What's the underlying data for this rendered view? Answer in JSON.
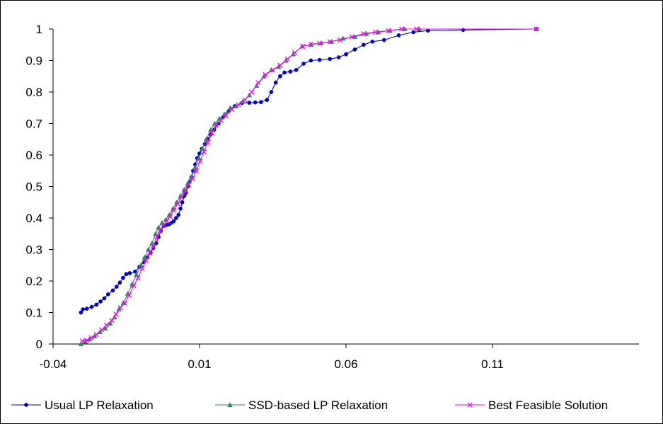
{
  "chart_data": {
    "type": "line",
    "title": "",
    "xlabel": "",
    "ylabel": "",
    "xlim": [
      -0.04,
      0.16
    ],
    "ylim": [
      0,
      1
    ],
    "x_ticks": [
      -0.04,
      0.01,
      0.06,
      0.11
    ],
    "x_tick_labels": [
      "-0.04",
      "0.01",
      "0.06",
      "0.11"
    ],
    "y_ticks": [
      0,
      0.1,
      0.2,
      0.3,
      0.4,
      0.5,
      0.6,
      0.7,
      0.8,
      0.9,
      1
    ],
    "y_tick_labels": [
      "0",
      "0.1",
      "0.2",
      "0.3",
      "0.4",
      "0.5",
      "0.6",
      "0.7",
      "0.8",
      "0.9",
      "1"
    ],
    "grid": false,
    "legend_position": "bottom",
    "series": [
      {
        "name": "Usual LP Relaxation",
        "color": "#0000cc",
        "marker": "circle",
        "x": [
          -0.0305,
          -0.0298,
          -0.0285,
          -0.0268,
          -0.0252,
          -0.0238,
          -0.0225,
          -0.0212,
          -0.0196,
          -0.0183,
          -0.0172,
          -0.0161,
          -0.015,
          -0.0138,
          -0.012,
          -0.0105,
          -0.009,
          -0.0078,
          -0.0067,
          -0.0058,
          -0.0048,
          -0.004,
          -0.0032,
          -0.0022,
          -0.0012,
          -0.0004,
          0.0004,
          0.0012,
          0.002,
          0.0028,
          0.0035,
          0.0041,
          0.0048,
          0.0054,
          0.006,
          0.0066,
          0.0072,
          0.0078,
          0.0085,
          0.0092,
          0.01,
          0.0108,
          0.0118,
          0.0128,
          0.0138,
          0.015,
          0.0165,
          0.018,
          0.02,
          0.022,
          0.0245,
          0.027,
          0.029,
          0.031,
          0.033,
          0.0345,
          0.036,
          0.0375,
          0.039,
          0.041,
          0.043,
          0.0455,
          0.048,
          0.051,
          0.0545,
          0.0575,
          0.06,
          0.063,
          0.066,
          0.069,
          0.073,
          0.078,
          0.083,
          0.088,
          0.1,
          0.125
        ],
        "y": [
          0.1,
          0.11,
          0.112,
          0.118,
          0.125,
          0.135,
          0.145,
          0.158,
          0.17,
          0.182,
          0.195,
          0.21,
          0.222,
          0.225,
          0.23,
          0.245,
          0.26,
          0.275,
          0.29,
          0.305,
          0.32,
          0.34,
          0.36,
          0.375,
          0.378,
          0.38,
          0.385,
          0.39,
          0.4,
          0.41,
          0.43,
          0.45,
          0.47,
          0.48,
          0.5,
          0.515,
          0.53,
          0.55,
          0.57,
          0.59,
          0.605,
          0.62,
          0.635,
          0.65,
          0.665,
          0.68,
          0.7,
          0.72,
          0.74,
          0.755,
          0.765,
          0.766,
          0.767,
          0.768,
          0.775,
          0.8,
          0.83,
          0.85,
          0.862,
          0.865,
          0.87,
          0.89,
          0.9,
          0.902,
          0.905,
          0.91,
          0.92,
          0.935,
          0.95,
          0.96,
          0.965,
          0.98,
          0.99,
          0.995,
          0.997,
          1.0
        ]
      },
      {
        "name": "SSD-based LP Relaxation",
        "color": "#2e8b57",
        "marker": "triangle",
        "x": [
          -0.0305,
          -0.029,
          -0.0275,
          -0.0258,
          -0.024,
          -0.0222,
          -0.0205,
          -0.019,
          -0.0175,
          -0.016,
          -0.0145,
          -0.013,
          -0.0115,
          -0.01,
          -0.0088,
          -0.0075,
          -0.0062,
          -0.005,
          -0.004,
          -0.0028,
          -0.0015,
          -0.0003,
          0.001,
          0.0022,
          0.0035,
          0.0048,
          0.006,
          0.0072,
          0.0085,
          0.0098,
          0.011,
          0.0123,
          0.0138,
          0.0152,
          0.0168,
          0.0185,
          0.0205,
          0.0225,
          0.0248,
          0.027,
          0.0295,
          0.032,
          0.0345,
          0.037,
          0.0395,
          0.042,
          0.045,
          0.048,
          0.0515,
          0.055,
          0.059,
          0.063,
          0.067,
          0.071,
          0.075,
          0.08,
          0.085,
          0.125
        ],
        "y": [
          0.0,
          0.008,
          0.015,
          0.025,
          0.038,
          0.05,
          0.065,
          0.085,
          0.11,
          0.13,
          0.16,
          0.19,
          0.22,
          0.25,
          0.275,
          0.3,
          0.32,
          0.35,
          0.37,
          0.385,
          0.395,
          0.41,
          0.43,
          0.45,
          0.47,
          0.49,
          0.51,
          0.53,
          0.56,
          0.59,
          0.62,
          0.65,
          0.68,
          0.7,
          0.715,
          0.73,
          0.75,
          0.755,
          0.77,
          0.79,
          0.82,
          0.85,
          0.87,
          0.88,
          0.9,
          0.92,
          0.945,
          0.95,
          0.955,
          0.96,
          0.97,
          0.975,
          0.985,
          0.99,
          0.995,
          1.0,
          1.0,
          1.0
        ]
      },
      {
        "name": "Best Feasible Solution",
        "color": "#ff00ff",
        "marker": "x",
        "x": [
          -0.03,
          -0.0285,
          -0.027,
          -0.0252,
          -0.0235,
          -0.0218,
          -0.02,
          -0.0185,
          -0.017,
          -0.0155,
          -0.014,
          -0.0125,
          -0.011,
          -0.0096,
          -0.0083,
          -0.007,
          -0.0058,
          -0.0046,
          -0.0035,
          -0.0024,
          -0.0012,
          0.0,
          0.0012,
          0.0025,
          0.0038,
          0.005,
          0.0063,
          0.0076,
          0.0089,
          0.0102,
          0.0115,
          0.0128,
          0.0142,
          0.0157,
          0.0173,
          0.019,
          0.021,
          0.0232,
          0.0255,
          0.0278,
          0.03,
          0.0325,
          0.035,
          0.0375,
          0.04,
          0.0425,
          0.0452,
          0.048,
          0.051,
          0.0545,
          0.058,
          0.062,
          0.066,
          0.07,
          0.0745,
          0.079,
          0.084,
          0.125
        ],
        "y": [
          0.01,
          0.012,
          0.02,
          0.03,
          0.045,
          0.06,
          0.075,
          0.095,
          0.115,
          0.13,
          0.155,
          0.185,
          0.21,
          0.24,
          0.265,
          0.29,
          0.31,
          0.34,
          0.36,
          0.375,
          0.39,
          0.405,
          0.425,
          0.445,
          0.465,
          0.485,
          0.505,
          0.525,
          0.55,
          0.58,
          0.61,
          0.64,
          0.67,
          0.695,
          0.71,
          0.725,
          0.745,
          0.76,
          0.775,
          0.8,
          0.83,
          0.855,
          0.87,
          0.885,
          0.905,
          0.925,
          0.945,
          0.952,
          0.955,
          0.96,
          0.965,
          0.975,
          0.985,
          0.99,
          0.995,
          1.0,
          1.0,
          1.0
        ]
      }
    ]
  }
}
